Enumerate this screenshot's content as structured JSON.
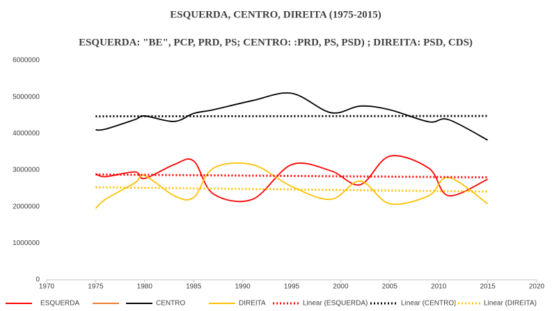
{
  "chart_data": {
    "type": "line",
    "title": "ESQUERDA,  CENTRO, DIREITA (1975-2015)",
    "subtitle": "ESQUERDA:  \"BE\", PCP, PRD, PS; CENTRO: :PRD, PS,  PSD) ; DIREITA:  PSD, CDS)",
    "x": [
      1975,
      1976,
      1979,
      1980,
      1983,
      1985,
      1987,
      1991,
      1995,
      1999,
      2002,
      2005,
      2009,
      2011,
      2015
    ],
    "series": [
      {
        "name": "ESQUERDA",
        "color": "#ff0000",
        "values": [
          2900000,
          2820000,
          2950000,
          2770000,
          3150000,
          3250000,
          2350000,
          2200000,
          3150000,
          2980000,
          2600000,
          3380000,
          3050000,
          2300000,
          2750000
        ]
      },
      {
        "name": null,
        "color": "#ed7d31",
        "values": [
          null,
          null,
          null,
          null,
          null,
          null,
          null,
          null,
          null,
          null,
          null,
          null,
          null,
          null,
          null
        ]
      },
      {
        "name": "CENTRO",
        "color": "#000000",
        "values": [
          4100000,
          4120000,
          4380000,
          4480000,
          4330000,
          4550000,
          4650000,
          4900000,
          5100000,
          4570000,
          4750000,
          4650000,
          4320000,
          4380000,
          3820000
        ]
      },
      {
        "name": "DIREITA",
        "color": "#ffc000",
        "values": [
          1950000,
          2200000,
          2650000,
          2850000,
          2300000,
          2250000,
          3050000,
          3150000,
          2550000,
          2200000,
          2700000,
          2080000,
          2300000,
          2800000,
          2080000
        ]
      }
    ],
    "trends": [
      {
        "name": "Linear (ESQUERDA)",
        "color": "#ff0000",
        "x": [
          1975,
          2015
        ],
        "values": [
          2880000,
          2800000
        ]
      },
      {
        "name": "Linear (CENTRO)",
        "color": "#000000",
        "x": [
          1975,
          2015
        ],
        "values": [
          4470000,
          4480000
        ]
      },
      {
        "name": "Linear (DIREITA)",
        "color": "#ffc000",
        "x": [
          1975,
          2015
        ],
        "values": [
          2530000,
          2410000
        ]
      }
    ],
    "xlim": [
      1970,
      2020
    ],
    "xticks": [
      1970,
      1975,
      1980,
      1985,
      1990,
      1995,
      2000,
      2005,
      2010,
      2015,
      2020
    ],
    "ylim": [
      0,
      6000000
    ],
    "yticks": [
      0,
      1000000,
      2000000,
      3000000,
      4000000,
      5000000,
      6000000
    ],
    "grid": false
  }
}
